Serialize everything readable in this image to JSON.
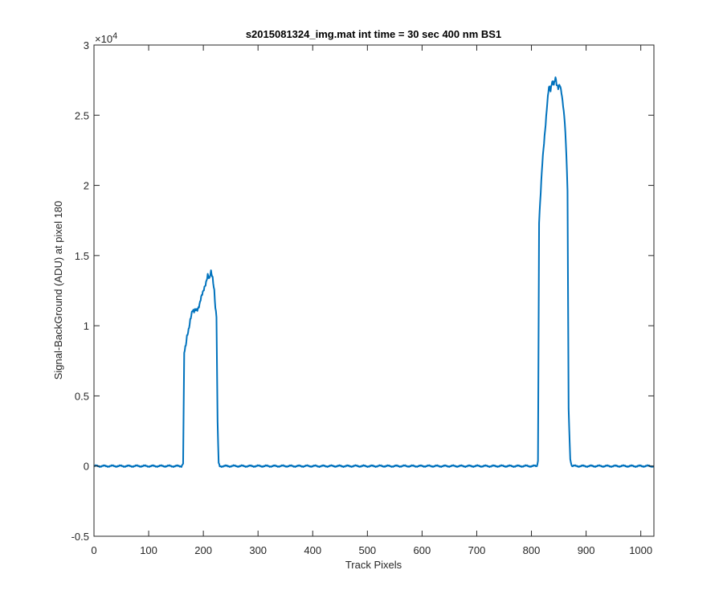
{
  "chart_data": {
    "type": "line",
    "title": "s2015081324_img.mat int time = 30 sec  400 nm BS1",
    "xlabel": "Track Pixels",
    "ylabel": "Signal-BackGround (ADU) at pixel 180",
    "xlim": [
      0,
      1024
    ],
    "ylim": [
      -5000,
      30000
    ],
    "y_multiplier_label": "×10",
    "y_multiplier_exponent": "4",
    "x_ticks": [
      {
        "value": 0,
        "label": "0"
      },
      {
        "value": 100,
        "label": "100"
      },
      {
        "value": 200,
        "label": "200"
      },
      {
        "value": 300,
        "label": "300"
      },
      {
        "value": 400,
        "label": "400"
      },
      {
        "value": 500,
        "label": "500"
      },
      {
        "value": 600,
        "label": "600"
      },
      {
        "value": 700,
        "label": "700"
      },
      {
        "value": 800,
        "label": "800"
      },
      {
        "value": 900,
        "label": "900"
      },
      {
        "value": 1000,
        "label": "1000"
      }
    ],
    "y_ticks": [
      {
        "value": -5000,
        "label": "-0.5"
      },
      {
        "value": 0,
        "label": "0"
      },
      {
        "value": 5000,
        "label": "0.5"
      },
      {
        "value": 10000,
        "label": "1"
      },
      {
        "value": 15000,
        "label": "1.5"
      },
      {
        "value": 20000,
        "label": "2"
      },
      {
        "value": 25000,
        "label": "2.5"
      },
      {
        "value": 30000,
        "label": "3"
      }
    ],
    "grid": false,
    "series": [
      {
        "color": "#0072BD",
        "points": [
          [
            0,
            0
          ],
          [
            50,
            0
          ],
          [
            100,
            0
          ],
          [
            150,
            0
          ],
          [
            160,
            0
          ],
          [
            163,
            200
          ],
          [
            165,
            8000
          ],
          [
            168,
            8500
          ],
          [
            170,
            9200
          ],
          [
            173,
            9800
          ],
          [
            176,
            10500
          ],
          [
            180,
            11000
          ],
          [
            183,
            10900
          ],
          [
            186,
            11200
          ],
          [
            190,
            11300
          ],
          [
            193,
            11500
          ],
          [
            196,
            11900
          ],
          [
            199,
            12300
          ],
          [
            202,
            12800
          ],
          [
            205,
            13200
          ],
          [
            208,
            13600
          ],
          [
            211,
            13200
          ],
          [
            214,
            13800
          ],
          [
            217,
            13500
          ],
          [
            220,
            12600
          ],
          [
            222,
            11300
          ],
          [
            224,
            10600
          ],
          [
            226,
            3000
          ],
          [
            228,
            200
          ],
          [
            230,
            0
          ],
          [
            300,
            0
          ],
          [
            400,
            0
          ],
          [
            500,
            0
          ],
          [
            600,
            0
          ],
          [
            700,
            0
          ],
          [
            800,
            0
          ],
          [
            810,
            0
          ],
          [
            812,
            400
          ],
          [
            814,
            17500
          ],
          [
            817,
            19500
          ],
          [
            820,
            21500
          ],
          [
            823,
            23000
          ],
          [
            826,
            24500
          ],
          [
            829,
            26000
          ],
          [
            832,
            27000
          ],
          [
            835,
            26600
          ],
          [
            838,
            27400
          ],
          [
            841,
            27300
          ],
          [
            844,
            27800
          ],
          [
            846,
            27200
          ],
          [
            849,
            26800
          ],
          [
            852,
            27100
          ],
          [
            855,
            26700
          ],
          [
            858,
            25800
          ],
          [
            861,
            24500
          ],
          [
            864,
            22000
          ],
          [
            866,
            19500
          ],
          [
            868,
            4000
          ],
          [
            871,
            500
          ],
          [
            874,
            0
          ],
          [
            900,
            0
          ],
          [
            1024,
            0
          ]
        ]
      }
    ]
  }
}
